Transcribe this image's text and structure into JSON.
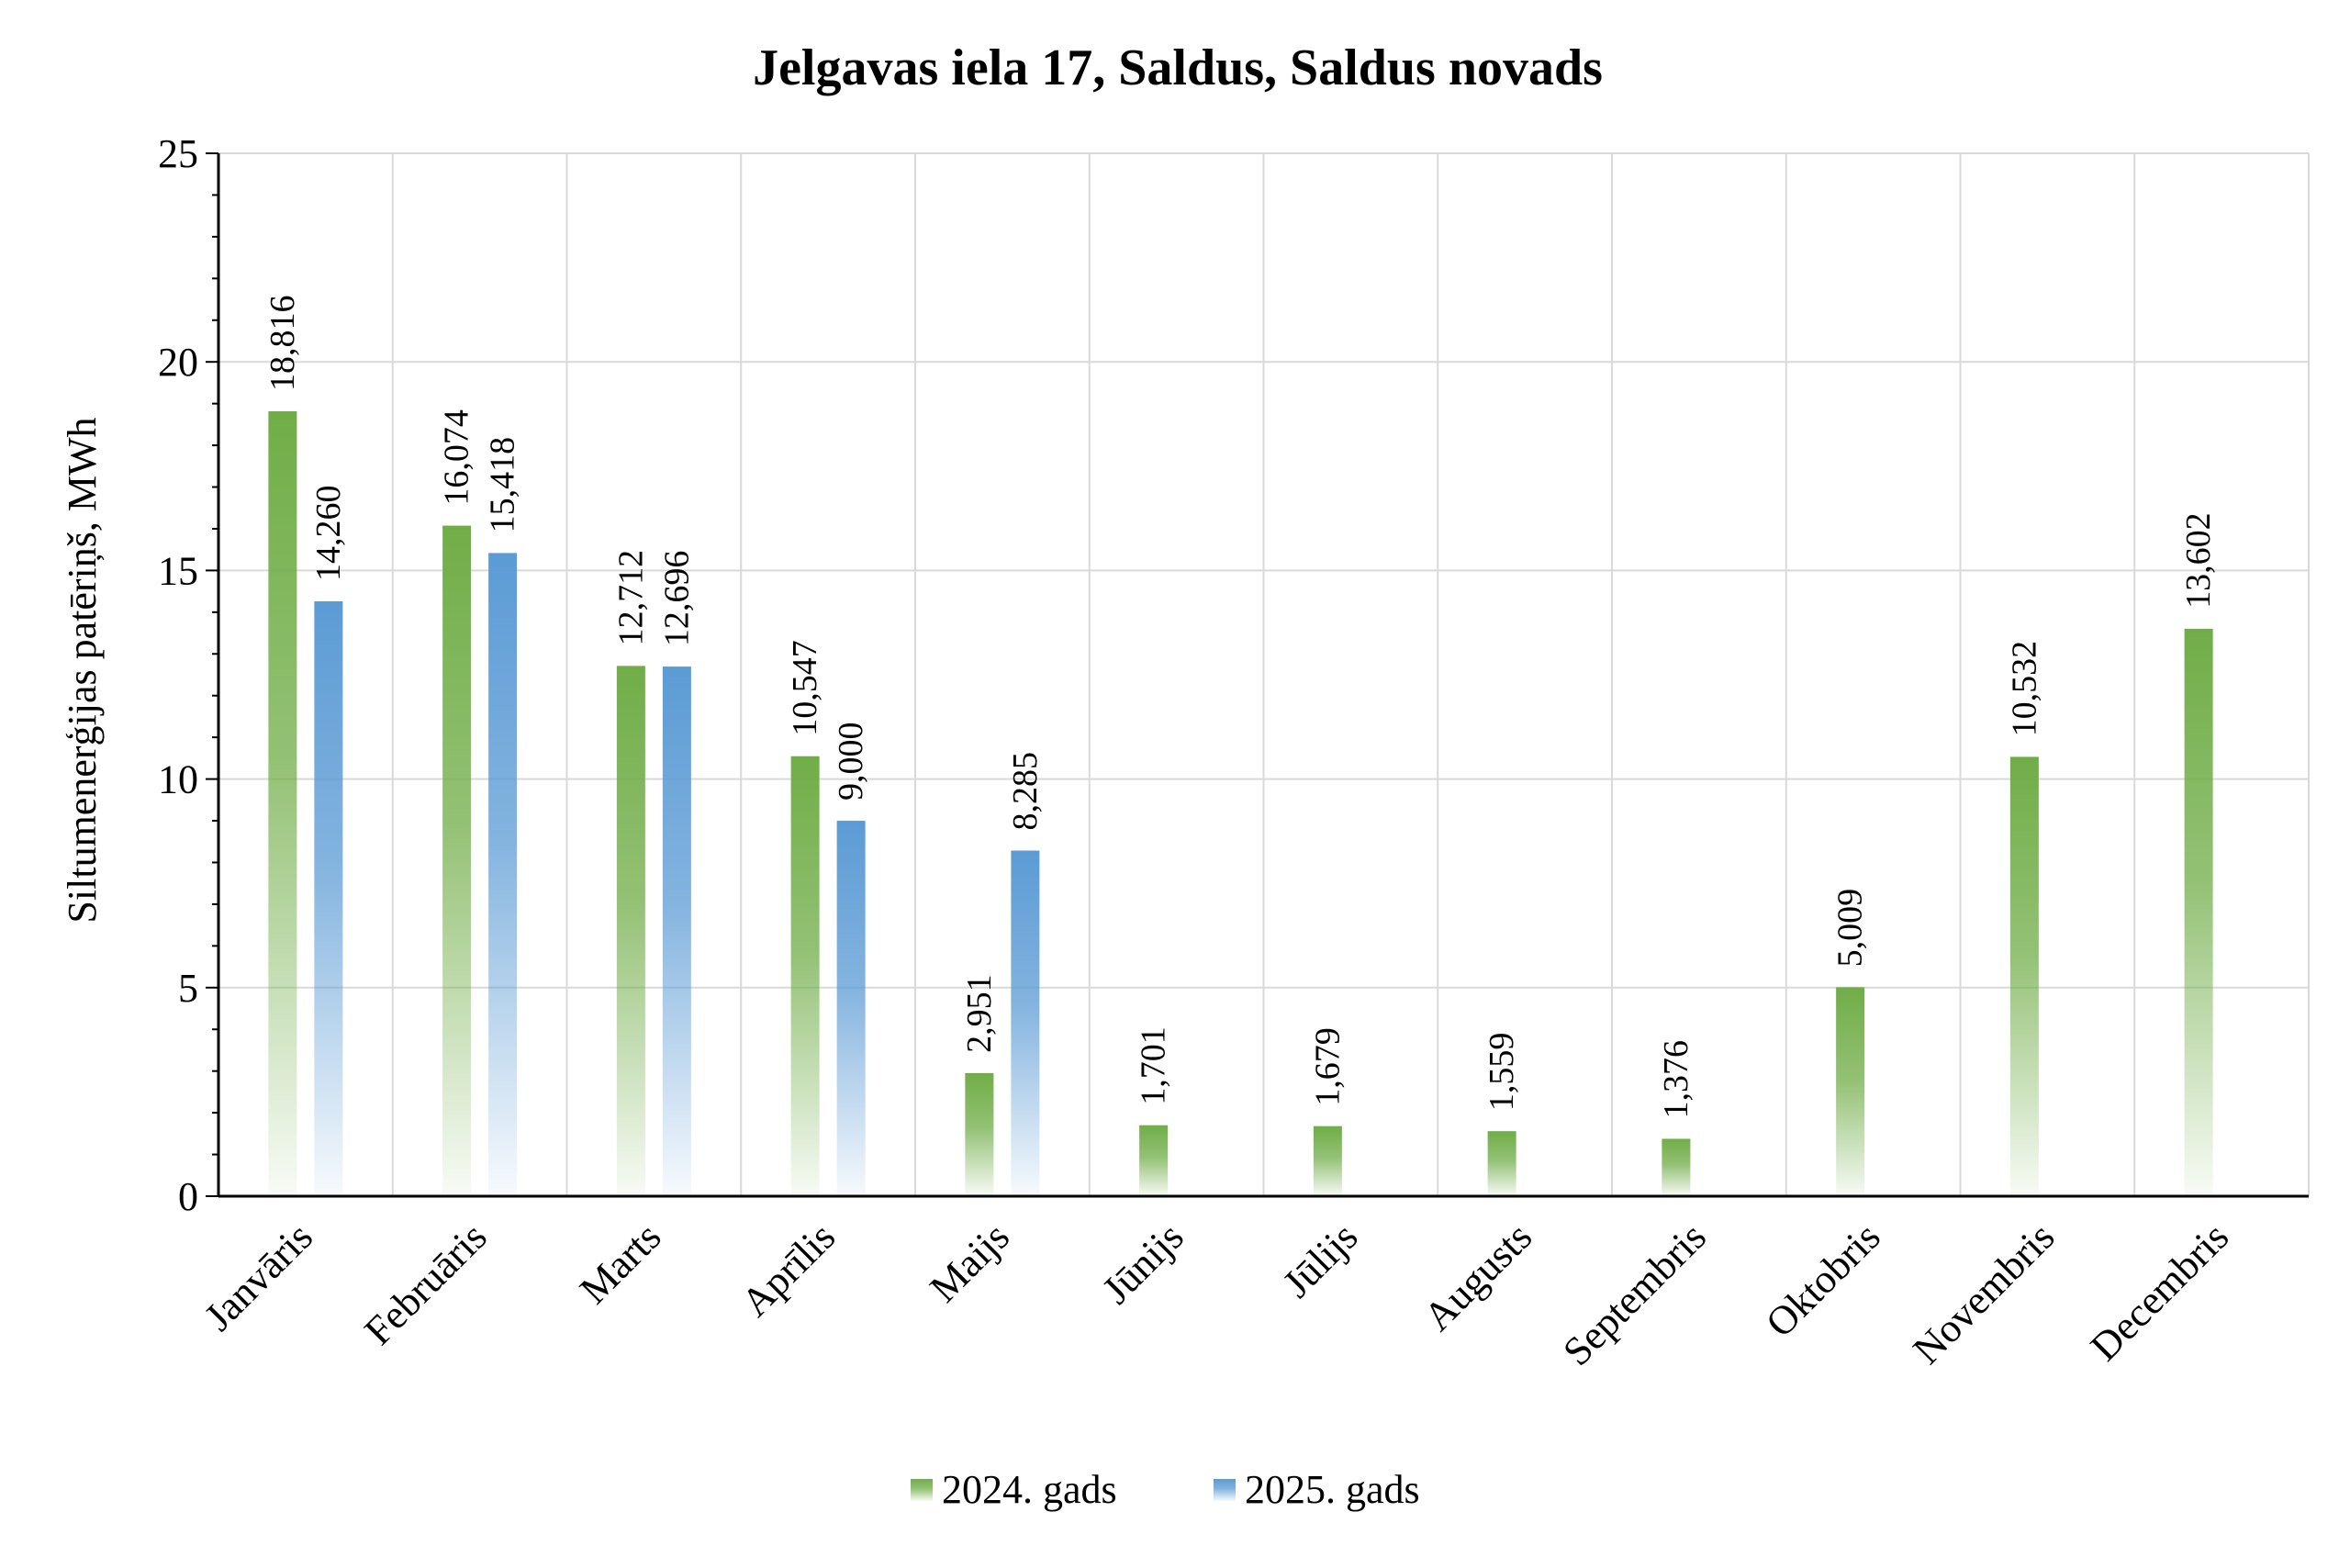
{
  "chart_data": {
    "type": "bar",
    "title": "Jelgavas iela 17, Saldus, Saldus novads",
    "xlabel": "",
    "ylabel": "Siltumenerģijas patēriņš, MWh",
    "ylim": [
      0,
      25
    ],
    "yticks": [
      0,
      5,
      10,
      15,
      20,
      25
    ],
    "grid": true,
    "legend_position": "bottom",
    "categories": [
      "Janvāris",
      "Februāris",
      "Marts",
      "Aprīlis",
      "Maijs",
      "Jūnijs",
      "Jūlijs",
      "Augusts",
      "Septembris",
      "Oktobris",
      "Novembris",
      "Decembris"
    ],
    "series": [
      {
        "name": "2024. gads",
        "color": "#70ad47",
        "values": [
          18.816,
          16.074,
          12.712,
          10.547,
          2.951,
          1.701,
          1.679,
          1.559,
          1.376,
          5.009,
          10.532,
          13.602
        ],
        "labels": [
          "18,816",
          "16,074",
          "12,712",
          "10,547",
          "2,951",
          "1,701",
          "1,679",
          "1,559",
          "1,376",
          "5,009",
          "10,532",
          "13,602"
        ]
      },
      {
        "name": "2025. gads",
        "color": "#5b9bd5",
        "values": [
          14.26,
          15.418,
          12.696,
          9.0,
          8.285,
          null,
          null,
          null,
          null,
          null,
          null,
          null
        ],
        "labels": [
          "14,260",
          "15,418",
          "12,696",
          "9,000",
          "8,285",
          null,
          null,
          null,
          null,
          null,
          null,
          null
        ]
      }
    ]
  }
}
